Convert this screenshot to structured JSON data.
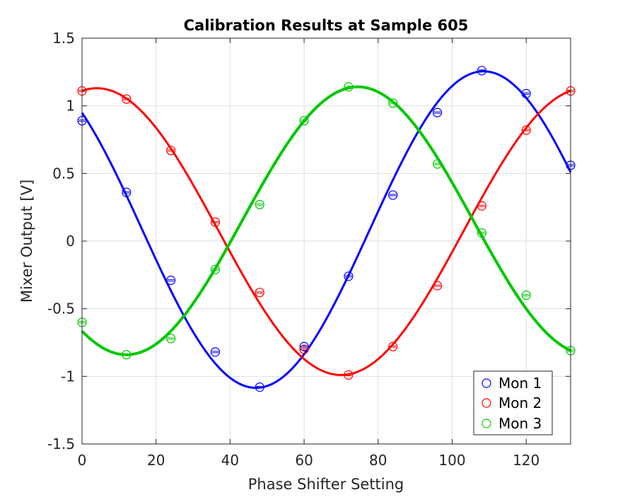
{
  "chart_data": {
    "type": "scatter",
    "title": "Calibration Results at Sample 605",
    "xlabel": "Phase Shifter Setting",
    "ylabel": "Mixer Output [V]",
    "xlim": [
      0,
      132
    ],
    "ylim": [
      -1.5,
      1.5
    ],
    "xticks": [
      0,
      20,
      40,
      60,
      80,
      100,
      120
    ],
    "xtick_labels": [
      "0",
      "20",
      "40",
      "60",
      "80",
      "100",
      "120"
    ],
    "yticks": [
      -1.5,
      -1,
      -0.5,
      0,
      0.5,
      1,
      1.5
    ],
    "ytick_labels": [
      "-1.5",
      "-1",
      "-0.5",
      "0",
      "0.5",
      "1",
      "1.5"
    ],
    "grid": true,
    "legend_position": "bottom-right",
    "x": [
      0,
      12,
      24,
      36,
      48,
      60,
      72,
      84,
      96,
      108,
      120,
      132
    ],
    "series": [
      {
        "name": "Mon 1",
        "color": "#0000ff",
        "values": [
          0.89,
          0.36,
          -0.29,
          -0.82,
          -1.08,
          -0.78,
          -0.26,
          0.34,
          0.95,
          1.26,
          1.09,
          0.56
        ],
        "fit": {
          "offset": 0.085,
          "amplitude": 1.17,
          "period": 123.0,
          "peak_x": 108.5
        }
      },
      {
        "name": "Mon 2",
        "color": "#ff0000",
        "values": [
          1.11,
          1.05,
          0.67,
          0.14,
          -0.38,
          -0.8,
          -0.99,
          -0.78,
          -0.33,
          0.26,
          0.82,
          1.11
        ],
        "fit": {
          "offset": 0.07,
          "amplitude": 1.06,
          "period": 132.0,
          "peak_x": 4.0
        }
      },
      {
        "name": "Mon 3",
        "color": "#00c800",
        "values": [
          -0.6,
          -0.84,
          -0.72,
          -0.21,
          0.27,
          0.89,
          1.14,
          1.02,
          0.57,
          0.06,
          -0.4,
          -0.81
        ],
        "fit": {
          "offset": 0.15,
          "amplitude": 0.99,
          "period": 125.0,
          "peak_x": 74.5
        }
      }
    ]
  }
}
